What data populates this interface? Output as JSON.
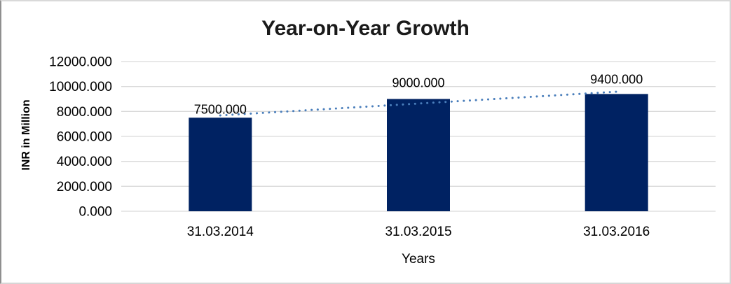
{
  "chart_data": {
    "type": "bar",
    "title": "Year-on-Year Growth",
    "xlabel": "Years",
    "ylabel": "INR in Million",
    "categories": [
      "31.03.2014",
      "31.03.2015",
      "31.03.2016"
    ],
    "values": [
      7500,
      9000,
      9400
    ],
    "value_labels": [
      "7500.000",
      "9000.000",
      "9400.000"
    ],
    "ylim": [
      0,
      12000
    ],
    "y_tick_values": [
      0,
      2000,
      4000,
      6000,
      8000,
      10000,
      12000
    ],
    "y_tick_labels": [
      "0.000",
      "2000.000",
      "4000.000",
      "6000.000",
      "8000.000",
      "10000.000",
      "12000.000"
    ],
    "grid": true,
    "legend": "none",
    "bar_color": "#002262",
    "gridline_color": "#d9d9d9",
    "text_color": "#000000",
    "trendline": {
      "type": "linear",
      "style": "dotted",
      "color": "#4a7ebb"
    }
  }
}
